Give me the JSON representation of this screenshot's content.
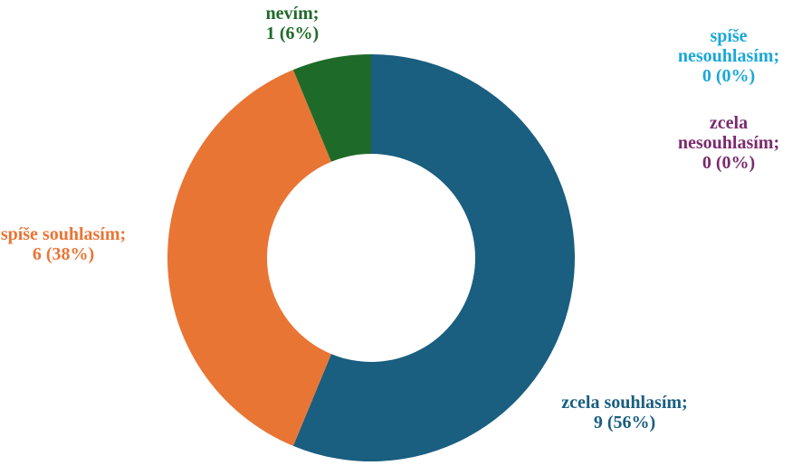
{
  "chart_data": {
    "type": "donut",
    "categories": [
      "zcela souhlasím;",
      "spíše souhlasím;",
      "nevím;",
      "spíše nesouhlasím;",
      "zcela nesouhlasím;"
    ],
    "values": [
      9,
      6,
      1,
      0,
      0
    ],
    "value_labels": [
      "9 (56%)",
      "6 (38%)",
      "1 (6%)",
      "0 (0%)",
      "0 (0%)"
    ],
    "colors": [
      "#1a5e80",
      "#e97535",
      "#1e6b29",
      "#1ba7d8",
      "#7b2a6f"
    ]
  }
}
